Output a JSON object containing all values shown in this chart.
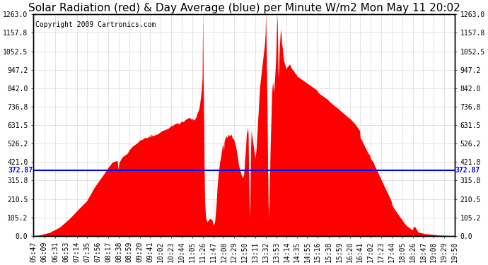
{
  "title": "Solar Radiation (red) & Day Average (blue) per Minute W/m2 Mon May 11 20:02",
  "copyright": "Copyright 2009 Cartronics.com",
  "avg_value": 372.87,
  "ymax": 1263.0,
  "ymin": 0.0,
  "yticks": [
    0.0,
    105.2,
    210.5,
    315.8,
    421.0,
    526.2,
    631.5,
    736.8,
    842.0,
    947.2,
    1052.5,
    1157.8,
    1263.0
  ],
  "ytick_labels": [
    "0.0",
    "105.2",
    "210.5",
    "315.8",
    "421.0",
    "526.2",
    "631.5",
    "736.8",
    "842.0",
    "947.2",
    "1052.5",
    "1157.8",
    "1263.0"
  ],
  "xtick_labels": [
    "05:47",
    "06:09",
    "06:31",
    "06:53",
    "07:14",
    "07:35",
    "07:56",
    "08:17",
    "08:38",
    "08:59",
    "09:20",
    "09:41",
    "10:02",
    "10:23",
    "10:44",
    "11:05",
    "11:26",
    "11:47",
    "12:08",
    "12:29",
    "12:50",
    "13:11",
    "13:32",
    "13:53",
    "14:14",
    "14:35",
    "14:55",
    "15:16",
    "15:38",
    "15:59",
    "16:20",
    "16:41",
    "17:02",
    "17:23",
    "17:44",
    "18:05",
    "18:26",
    "18:47",
    "19:08",
    "19:29",
    "19:50"
  ],
  "fill_color": "#FF0000",
  "line_color": "#0000FF",
  "background_color": "#FFFFFF",
  "grid_color": "#BBBBBB",
  "title_fontsize": 11,
  "copyright_fontsize": 7,
  "tick_fontsize": 7
}
